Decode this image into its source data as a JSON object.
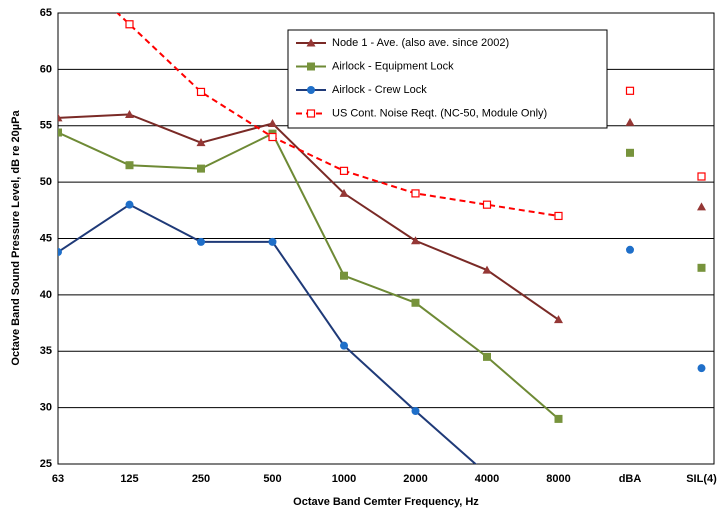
{
  "chart_data": {
    "type": "line",
    "x_label": "Octave Band Cemter Frequency, Hz",
    "y_label": "Octave Band Sound Pressure Level, dB re 20µPa",
    "categories": [
      "63",
      "125",
      "250",
      "500",
      "1000",
      "2000",
      "4000",
      "8000",
      "dBA",
      "SIL(4)"
    ],
    "ylim": [
      25,
      65
    ],
    "yticks": [
      25,
      30,
      35,
      40,
      45,
      50,
      55,
      60,
      65
    ],
    "grid": true,
    "legend": "top-right",
    "series": [
      {
        "name": "Node 1 - Ave. (also ave. since 2002)",
        "color": "#7a2a26",
        "marker": "triangle",
        "marker_color": "#953735",
        "dash": false,
        "values": [
          55.7,
          56,
          53.5,
          55.2,
          49,
          44.8,
          42.2,
          37.8,
          55.3,
          47.8
        ]
      },
      {
        "name": "Airlock - Equipment Lock",
        "color": "#6e8a35",
        "marker": "square",
        "marker_color": "#77933c",
        "dash": false,
        "values": [
          54.4,
          51.5,
          51.2,
          54.3,
          41.7,
          39.3,
          34.5,
          29,
          52.6,
          42.4
        ]
      },
      {
        "name": "Airlock - Crew Lock",
        "color": "#1f3a78",
        "marker": "circle",
        "marker_color": "#1f6fc9",
        "dash": false,
        "values": [
          43.8,
          48,
          44.7,
          44.7,
          35.5,
          29.7,
          24.1,
          null,
          44,
          33.5
        ]
      },
      {
        "name": "US Cont. Noise Reqt. (NC-50, Module Only)",
        "color": "#ff0000",
        "marker": "open-square",
        "marker_color": "#ff0000",
        "dash": true,
        "values": [
          70,
          64,
          58,
          54,
          51,
          49,
          48,
          47,
          58.1,
          50.5
        ]
      }
    ]
  }
}
